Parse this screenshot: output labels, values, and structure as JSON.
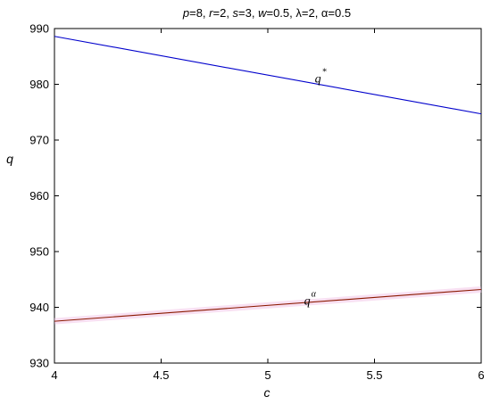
{
  "chart_data": {
    "type": "line",
    "title_parts": [
      {
        "text": "p",
        "italic": true
      },
      {
        "text": "=8, ",
        "italic": false
      },
      {
        "text": "r",
        "italic": true
      },
      {
        "text": "=2, ",
        "italic": false
      },
      {
        "text": "s",
        "italic": true
      },
      {
        "text": "=3, ",
        "italic": false
      },
      {
        "text": "w",
        "italic": true
      },
      {
        "text": "=0.5, λ=2, α=0.5",
        "italic": false
      }
    ],
    "xlabel": "c",
    "ylabel": "q",
    "xlim": [
      4,
      6
    ],
    "ylim": [
      930,
      990
    ],
    "xticks": [
      4,
      4.5,
      5,
      5.5,
      6
    ],
    "xtick_labels": [
      "4",
      "4.5",
      "5",
      "5.5",
      "6"
    ],
    "yticks": [
      930,
      940,
      950,
      960,
      970,
      980,
      990
    ],
    "ytick_labels": [
      "930",
      "940",
      "950",
      "960",
      "970",
      "980",
      "990"
    ],
    "grid": false,
    "series": [
      {
        "color": "#0000cc",
        "x": [
          4,
          6
        ],
        "y": [
          988.6,
          974.7
        ]
      },
      {
        "color": "#8b1a00",
        "x": [
          4,
          6
        ],
        "y": [
          937.5,
          943.2
        ],
        "band_color": "#f3c6e8"
      }
    ],
    "annotations": [
      {
        "base": "q",
        "sup": "*",
        "x": 5.22,
        "y": 980.3
      },
      {
        "base": "q",
        "sup": "α",
        "x": 5.17,
        "y": 940.5
      }
    ]
  }
}
